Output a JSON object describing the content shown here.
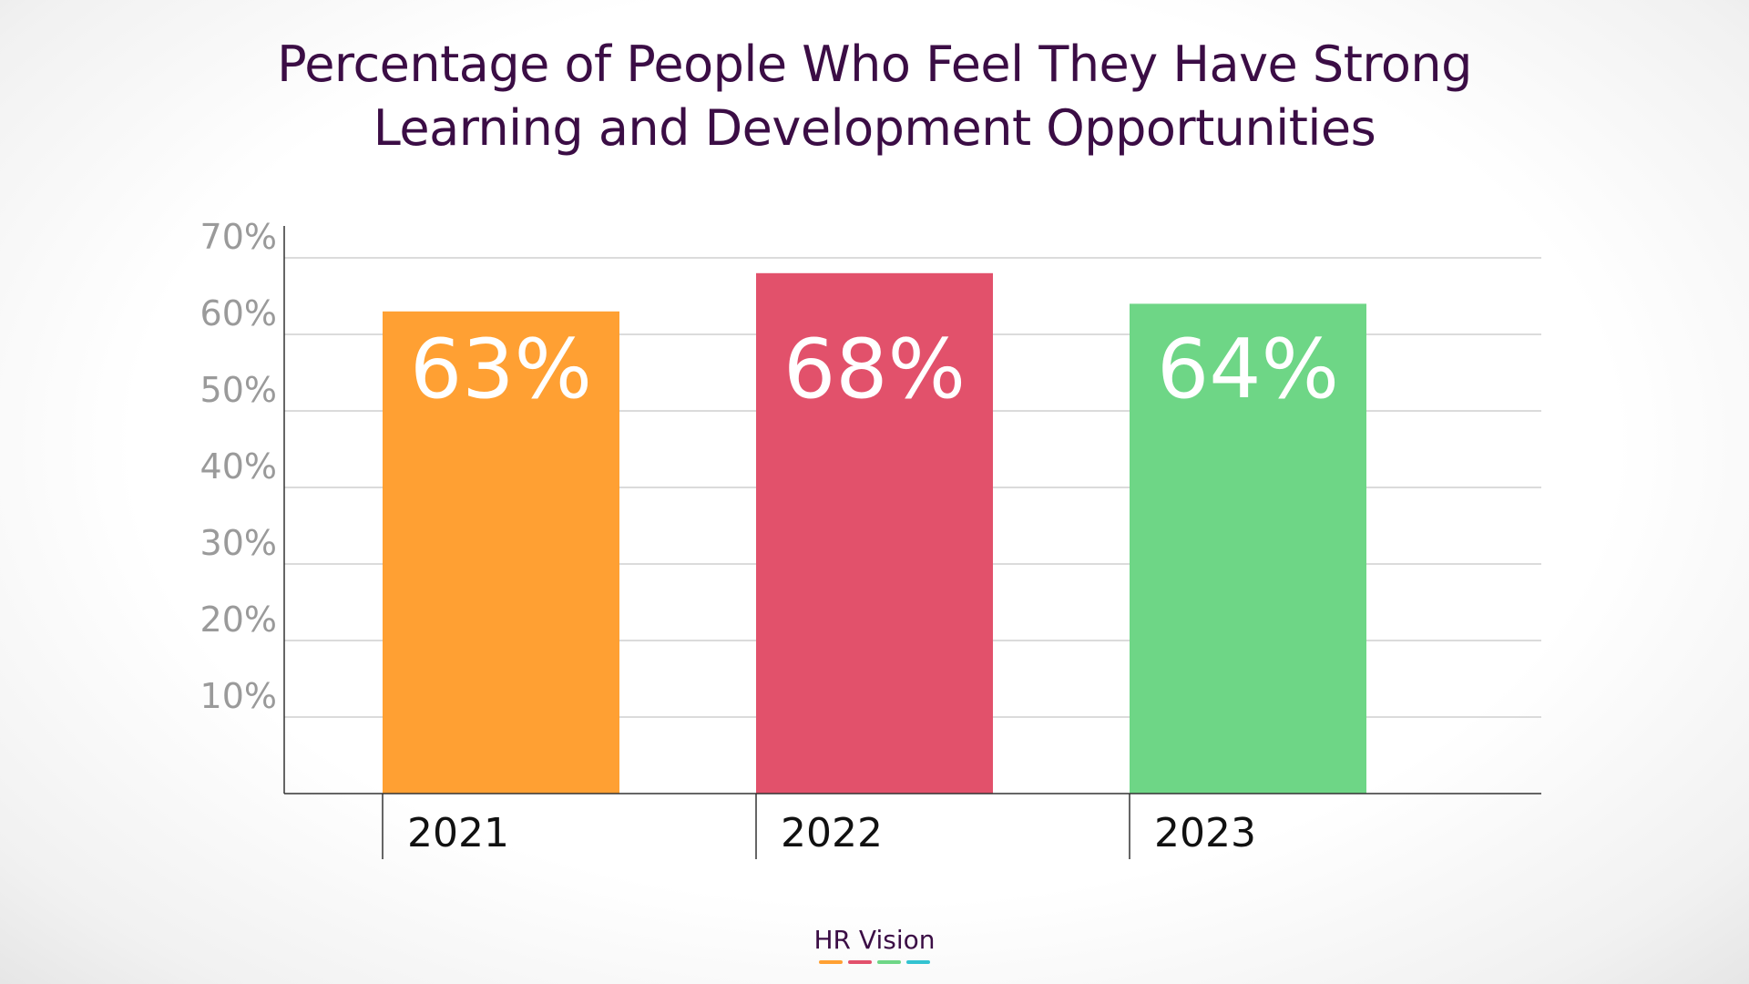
{
  "chart_data": {
    "type": "bar",
    "title_lines": [
      "Percentage of People Who Feel They Have Strong",
      "Learning and Development Opportunities"
    ],
    "categories": [
      "2021",
      "2022",
      "2023"
    ],
    "values": [
      63,
      68,
      64
    ],
    "data_labels": [
      "63%",
      "68%",
      "64%"
    ],
    "colors": [
      "#ffa033",
      "#e2516b",
      "#6ed686"
    ],
    "ylim": [
      0,
      70
    ],
    "y_ticks": [
      10,
      20,
      30,
      40,
      50,
      60,
      70
    ],
    "y_tick_labels": [
      "10%",
      "20%",
      "30%",
      "40%",
      "50%",
      "60%",
      "70%"
    ],
    "grid": true,
    "legend": "none"
  },
  "brand": {
    "name": "HR Vision",
    "bar_colors": [
      "#ffa033",
      "#e2516b",
      "#6ed686",
      "#33c3d1"
    ]
  }
}
